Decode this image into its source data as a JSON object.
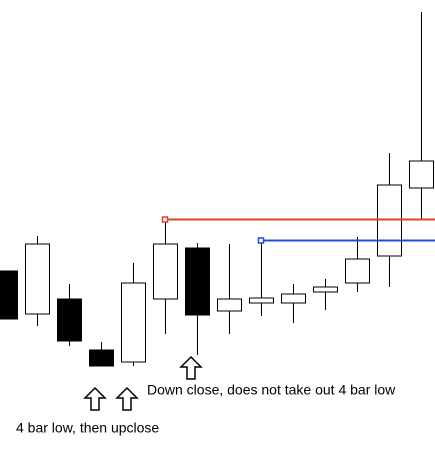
{
  "chart_data": {
    "type": "candlestick",
    "open": [
      178,
      135,
      150,
      99,
      87,
      150,
      201,
      138,
      146,
      146,
      157,
      166,
      193,
      261
    ],
    "high": [
      178,
      213,
      165,
      107,
      186,
      230,
      206,
      205,
      209,
      165,
      170,
      212,
      296,
      437
    ],
    "low": [
      130,
      123,
      103,
      83,
      83,
      115,
      94,
      115,
      133,
      126,
      139,
      157,
      162,
      230
    ],
    "close": [
      130,
      205,
      108,
      83,
      166,
      205,
      134,
      150,
      151,
      155,
      162,
      190,
      264,
      288
    ],
    "up_color": "#ffffff",
    "down_color": "#000000",
    "ylim": [
      0,
      449
    ],
    "levels": [
      {
        "value": 230,
        "color": "#e0412f",
        "from": 5
      },
      {
        "value": 209,
        "color": "#1f4fd8",
        "from": 8
      }
    ],
    "annotations": [
      "Down close, does not take out  4 bar low",
      "4 bar low, then upclose"
    ]
  }
}
